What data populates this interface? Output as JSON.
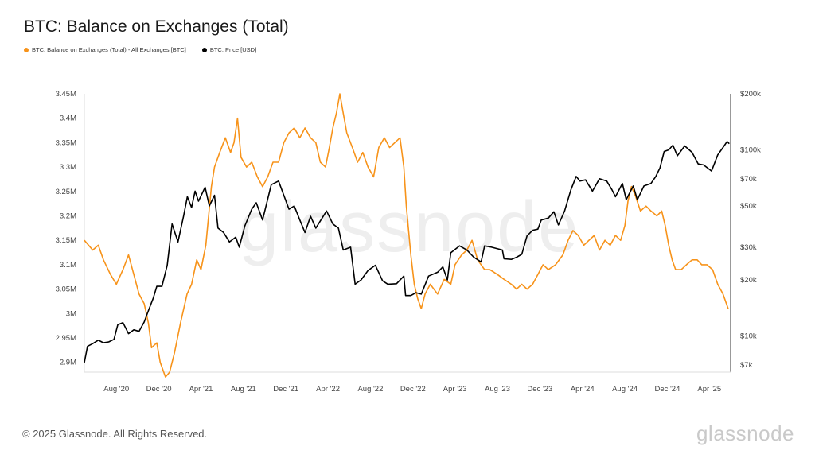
{
  "page": {
    "title": "BTC: Balance on Exchanges (Total)",
    "footer": "© 2025 Glassnode. All Rights Reserved.",
    "brand": "glassnode",
    "watermark": "glassnode"
  },
  "colors": {
    "balance": "#f7931a",
    "price": "#000000"
  },
  "chart_data": {
    "type": "line",
    "legend": [
      {
        "name": "BTC: Balance on Exchanges (Total) - All Exchanges [BTC]",
        "color": "#f7931a"
      },
      {
        "name": "BTC: Price [USD]",
        "color": "#000000"
      }
    ],
    "x_ticks": [
      "Aug '20",
      "Dec '20",
      "Apr '21",
      "Aug '21",
      "Dec '21",
      "Apr '22",
      "Aug '22",
      "Dec '22",
      "Apr '23",
      "Aug '23",
      "Dec '23",
      "Apr '24",
      "Aug '24",
      "Dec '24",
      "Apr '25"
    ],
    "x_range": [
      "2020-05-01",
      "2025-06-01"
    ],
    "y_left": {
      "ticks": [
        2.9,
        2.95,
        3.0,
        3.05,
        3.1,
        3.15,
        3.2,
        3.25,
        3.3,
        3.35,
        3.4,
        3.45
      ],
      "tick_labels": [
        "2.9M",
        "2.95M",
        "3M",
        "3.05M",
        "3.1M",
        "3.15M",
        "3.2M",
        "3.25M",
        "3.3M",
        "3.35M",
        "3.4M",
        "3.45M"
      ],
      "range": [
        2.88,
        3.45
      ]
    },
    "y_right": {
      "scale": "log",
      "ticks": [
        7000,
        10000,
        20000,
        30000,
        50000,
        70000,
        100000,
        200000
      ],
      "tick_labels": [
        "$7k",
        "$10k",
        "$20k",
        "$30k",
        "$50k",
        "$70k",
        "$100k",
        "$200k"
      ],
      "range": [
        6400,
        200000
      ]
    },
    "series": [
      {
        "name": "BTC: Balance on Exchanges (Total) - All Exchanges [BTC]",
        "axis": "left",
        "points": [
          [
            "2020-05-01",
            3.15
          ],
          [
            "2020-05-25",
            3.13
          ],
          [
            "2020-06-10",
            3.14
          ],
          [
            "2020-06-25",
            3.11
          ],
          [
            "2020-07-15",
            3.08
          ],
          [
            "2020-08-01",
            3.06
          ],
          [
            "2020-08-20",
            3.09
          ],
          [
            "2020-09-05",
            3.12
          ],
          [
            "2020-09-20",
            3.08
          ],
          [
            "2020-10-05",
            3.04
          ],
          [
            "2020-10-20",
            3.02
          ],
          [
            "2020-11-01",
            2.98
          ],
          [
            "2020-11-10",
            2.93
          ],
          [
            "2020-11-25",
            2.94
          ],
          [
            "2020-12-05",
            2.9
          ],
          [
            "2020-12-20",
            2.87
          ],
          [
            "2021-01-01",
            2.88
          ],
          [
            "2021-01-15",
            2.92
          ],
          [
            "2021-02-01",
            2.98
          ],
          [
            "2021-02-20",
            3.04
          ],
          [
            "2021-03-05",
            3.06
          ],
          [
            "2021-03-20",
            3.11
          ],
          [
            "2021-04-01",
            3.09
          ],
          [
            "2021-04-15",
            3.14
          ],
          [
            "2021-05-01",
            3.26
          ],
          [
            "2021-05-10",
            3.3
          ],
          [
            "2021-05-25",
            3.33
          ],
          [
            "2021-06-10",
            3.36
          ],
          [
            "2021-06-25",
            3.33
          ],
          [
            "2021-07-05",
            3.35
          ],
          [
            "2021-07-15",
            3.4
          ],
          [
            "2021-07-25",
            3.32
          ],
          [
            "2021-08-10",
            3.3
          ],
          [
            "2021-08-25",
            3.31
          ],
          [
            "2021-09-10",
            3.28
          ],
          [
            "2021-09-25",
            3.26
          ],
          [
            "2021-10-10",
            3.28
          ],
          [
            "2021-10-25",
            3.31
          ],
          [
            "2021-11-10",
            3.31
          ],
          [
            "2021-11-25",
            3.35
          ],
          [
            "2021-12-10",
            3.37
          ],
          [
            "2021-12-25",
            3.38
          ],
          [
            "2022-01-10",
            3.36
          ],
          [
            "2022-01-25",
            3.38
          ],
          [
            "2022-02-10",
            3.36
          ],
          [
            "2022-02-25",
            3.35
          ],
          [
            "2022-03-10",
            3.31
          ],
          [
            "2022-03-25",
            3.3
          ],
          [
            "2022-04-05",
            3.34
          ],
          [
            "2022-04-15",
            3.38
          ],
          [
            "2022-04-25",
            3.41
          ],
          [
            "2022-05-05",
            3.45
          ],
          [
            "2022-05-15",
            3.41
          ],
          [
            "2022-05-25",
            3.37
          ],
          [
            "2022-06-10",
            3.34
          ],
          [
            "2022-06-25",
            3.31
          ],
          [
            "2022-07-10",
            3.33
          ],
          [
            "2022-07-25",
            3.3
          ],
          [
            "2022-08-10",
            3.28
          ],
          [
            "2022-08-25",
            3.34
          ],
          [
            "2022-09-10",
            3.36
          ],
          [
            "2022-09-25",
            3.34
          ],
          [
            "2022-10-10",
            3.35
          ],
          [
            "2022-10-25",
            3.36
          ],
          [
            "2022-11-05",
            3.3
          ],
          [
            "2022-11-12",
            3.22
          ],
          [
            "2022-11-25",
            3.12
          ],
          [
            "2022-12-05",
            3.06
          ],
          [
            "2022-12-15",
            3.03
          ],
          [
            "2022-12-25",
            3.01
          ],
          [
            "2023-01-05",
            3.04
          ],
          [
            "2023-01-20",
            3.06
          ],
          [
            "2023-02-10",
            3.04
          ],
          [
            "2023-03-01",
            3.07
          ],
          [
            "2023-03-20",
            3.06
          ],
          [
            "2023-04-01",
            3.1
          ],
          [
            "2023-04-20",
            3.12
          ],
          [
            "2023-05-05",
            3.13
          ],
          [
            "2023-05-20",
            3.15
          ],
          [
            "2023-06-05",
            3.11
          ],
          [
            "2023-06-25",
            3.09
          ],
          [
            "2023-07-10",
            3.09
          ],
          [
            "2023-08-01",
            3.08
          ],
          [
            "2023-08-20",
            3.07
          ],
          [
            "2023-09-10",
            3.06
          ],
          [
            "2023-09-25",
            3.05
          ],
          [
            "2023-10-10",
            3.06
          ],
          [
            "2023-10-25",
            3.05
          ],
          [
            "2023-11-10",
            3.06
          ],
          [
            "2023-11-25",
            3.08
          ],
          [
            "2023-12-10",
            3.1
          ],
          [
            "2023-12-25",
            3.09
          ],
          [
            "2024-01-15",
            3.1
          ],
          [
            "2024-02-05",
            3.12
          ],
          [
            "2024-02-20",
            3.15
          ],
          [
            "2024-03-05",
            3.17
          ],
          [
            "2024-03-20",
            3.16
          ],
          [
            "2024-04-05",
            3.14
          ],
          [
            "2024-04-20",
            3.15
          ],
          [
            "2024-05-05",
            3.16
          ],
          [
            "2024-05-20",
            3.13
          ],
          [
            "2024-06-05",
            3.15
          ],
          [
            "2024-06-20",
            3.14
          ],
          [
            "2024-07-05",
            3.16
          ],
          [
            "2024-07-20",
            3.15
          ],
          [
            "2024-08-01",
            3.18
          ],
          [
            "2024-08-10",
            3.23
          ],
          [
            "2024-08-20",
            3.26
          ],
          [
            "2024-09-01",
            3.24
          ],
          [
            "2024-09-15",
            3.21
          ],
          [
            "2024-10-01",
            3.22
          ],
          [
            "2024-10-15",
            3.21
          ],
          [
            "2024-11-01",
            3.2
          ],
          [
            "2024-11-15",
            3.21
          ],
          [
            "2024-11-25",
            3.18
          ],
          [
            "2024-12-05",
            3.14
          ],
          [
            "2024-12-15",
            3.11
          ],
          [
            "2024-12-25",
            3.09
          ],
          [
            "2025-01-10",
            3.09
          ],
          [
            "2025-01-25",
            3.1
          ],
          [
            "2025-02-10",
            3.11
          ],
          [
            "2025-02-25",
            3.11
          ],
          [
            "2025-03-10",
            3.1
          ],
          [
            "2025-03-25",
            3.1
          ],
          [
            "2025-04-10",
            3.09
          ],
          [
            "2025-04-25",
            3.06
          ],
          [
            "2025-05-10",
            3.04
          ],
          [
            "2025-05-25",
            3.01
          ]
        ]
      },
      {
        "name": "BTC: Price [USD]",
        "axis": "right",
        "points": [
          [
            "2020-05-01",
            7200
          ],
          [
            "2020-05-10",
            8800
          ],
          [
            "2020-05-25",
            9100
          ],
          [
            "2020-06-10",
            9500
          ],
          [
            "2020-06-25",
            9200
          ],
          [
            "2020-07-10",
            9300
          ],
          [
            "2020-07-25",
            9600
          ],
          [
            "2020-08-05",
            11500
          ],
          [
            "2020-08-20",
            11800
          ],
          [
            "2020-09-05",
            10300
          ],
          [
            "2020-09-20",
            10800
          ],
          [
            "2020-10-05",
            10600
          ],
          [
            "2020-10-20",
            11900
          ],
          [
            "2020-11-01",
            13700
          ],
          [
            "2020-11-15",
            16000
          ],
          [
            "2020-11-25",
            18500
          ],
          [
            "2020-12-10",
            18500
          ],
          [
            "2020-12-25",
            24000
          ],
          [
            "2021-01-08",
            40000
          ],
          [
            "2021-01-25",
            32000
          ],
          [
            "2021-02-10",
            44000
          ],
          [
            "2021-02-21",
            56000
          ],
          [
            "2021-03-05",
            49000
          ],
          [
            "2021-03-15",
            60000
          ],
          [
            "2021-03-25",
            53000
          ],
          [
            "2021-04-13",
            63000
          ],
          [
            "2021-04-25",
            50000
          ],
          [
            "2021-05-10",
            57000
          ],
          [
            "2021-05-20",
            38000
          ],
          [
            "2021-06-05",
            36000
          ],
          [
            "2021-06-22",
            32000
          ],
          [
            "2021-07-10",
            34000
          ],
          [
            "2021-07-20",
            30000
          ],
          [
            "2021-08-05",
            39000
          ],
          [
            "2021-08-25",
            48000
          ],
          [
            "2021-09-07",
            52000
          ],
          [
            "2021-09-25",
            42000
          ],
          [
            "2021-10-20",
            65000
          ],
          [
            "2021-11-10",
            68000
          ],
          [
            "2021-11-25",
            57000
          ],
          [
            "2021-12-10",
            48000
          ],
          [
            "2021-12-25",
            50000
          ],
          [
            "2022-01-10",
            42000
          ],
          [
            "2022-01-25",
            36000
          ],
          [
            "2022-02-10",
            44000
          ],
          [
            "2022-02-25",
            38000
          ],
          [
            "2022-03-28",
            47000
          ],
          [
            "2022-04-15",
            40000
          ],
          [
            "2022-05-01",
            38000
          ],
          [
            "2022-05-15",
            29000
          ],
          [
            "2022-06-05",
            30000
          ],
          [
            "2022-06-18",
            19000
          ],
          [
            "2022-07-05",
            20000
          ],
          [
            "2022-07-25",
            22500
          ],
          [
            "2022-08-15",
            24000
          ],
          [
            "2022-09-05",
            19800
          ],
          [
            "2022-09-20",
            19000
          ],
          [
            "2022-10-15",
            19100
          ],
          [
            "2022-11-05",
            21000
          ],
          [
            "2022-11-10",
            16500
          ],
          [
            "2022-11-25",
            16500
          ],
          [
            "2022-12-10",
            17100
          ],
          [
            "2022-12-25",
            16800
          ],
          [
            "2023-01-15",
            21000
          ],
          [
            "2023-02-10",
            22000
          ],
          [
            "2023-02-25",
            23500
          ],
          [
            "2023-03-10",
            20000
          ],
          [
            "2023-03-20",
            28000
          ],
          [
            "2023-04-14",
            30500
          ],
          [
            "2023-05-05",
            29000
          ],
          [
            "2023-05-25",
            26500
          ],
          [
            "2023-06-15",
            25000
          ],
          [
            "2023-06-25",
            30500
          ],
          [
            "2023-07-15",
            30000
          ],
          [
            "2023-08-15",
            29000
          ],
          [
            "2023-08-20",
            26000
          ],
          [
            "2023-09-10",
            25800
          ],
          [
            "2023-09-25",
            26500
          ],
          [
            "2023-10-10",
            27500
          ],
          [
            "2023-10-25",
            34500
          ],
          [
            "2023-11-10",
            37000
          ],
          [
            "2023-11-25",
            37500
          ],
          [
            "2023-12-05",
            42000
          ],
          [
            "2023-12-25",
            43000
          ],
          [
            "2024-01-10",
            46500
          ],
          [
            "2024-01-23",
            39500
          ],
          [
            "2024-02-10",
            47000
          ],
          [
            "2024-02-28",
            61000
          ],
          [
            "2024-03-14",
            72000
          ],
          [
            "2024-03-25",
            68000
          ],
          [
            "2024-04-10",
            69000
          ],
          [
            "2024-04-30",
            60000
          ],
          [
            "2024-05-20",
            70000
          ],
          [
            "2024-06-10",
            68000
          ],
          [
            "2024-06-25",
            61000
          ],
          [
            "2024-07-05",
            56000
          ],
          [
            "2024-07-25",
            66000
          ],
          [
            "2024-08-05",
            54000
          ],
          [
            "2024-08-25",
            64000
          ],
          [
            "2024-09-06",
            54000
          ],
          [
            "2024-09-25",
            64000
          ],
          [
            "2024-10-15",
            66000
          ],
          [
            "2024-10-29",
            72000
          ],
          [
            "2024-11-10",
            80000
          ],
          [
            "2024-11-22",
            98000
          ],
          [
            "2024-12-05",
            100000
          ],
          [
            "2024-12-17",
            106000
          ],
          [
            "2024-12-30",
            93000
          ],
          [
            "2025-01-20",
            105000
          ],
          [
            "2025-02-10",
            97000
          ],
          [
            "2025-02-28",
            84000
          ],
          [
            "2025-03-15",
            83000
          ],
          [
            "2025-04-07",
            77000
          ],
          [
            "2025-04-25",
            94000
          ],
          [
            "2025-05-10",
            103000
          ],
          [
            "2025-05-22",
            111000
          ],
          [
            "2025-05-28",
            108000
          ]
        ]
      }
    ]
  }
}
